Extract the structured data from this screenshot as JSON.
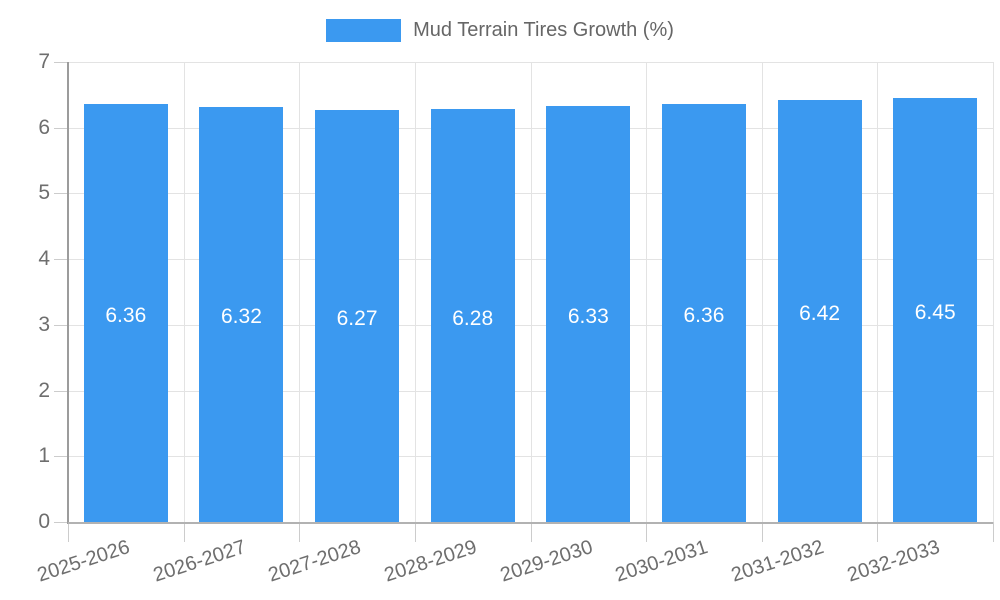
{
  "legend": {
    "label": "Mud Terrain Tires Growth (%)"
  },
  "chart_data": {
    "type": "bar",
    "title": "",
    "xlabel": "",
    "ylabel": "",
    "series_name": "Mud Terrain Tires Growth (%)",
    "categories": [
      "2025-2026",
      "2026-2027",
      "2027-2028",
      "2028-2029",
      "2029-2030",
      "2030-2031",
      "2031-2032",
      "2032-2033"
    ],
    "values": [
      6.36,
      6.32,
      6.27,
      6.28,
      6.33,
      6.36,
      6.42,
      6.45
    ],
    "value_labels": [
      "6.36",
      "6.32",
      "6.27",
      "6.28",
      "6.33",
      "6.36",
      "6.42",
      "6.45"
    ],
    "ylim": [
      0,
      7
    ],
    "y_ticks": [
      0,
      1,
      2,
      3,
      4,
      5,
      6,
      7
    ],
    "grid": true,
    "legend_position": "top",
    "x_label_rotation_deg": -18,
    "colors": {
      "bar": "#3b99f0",
      "bar_value_label": "#ffffff",
      "gridline": "#e3e3e3",
      "axis_line_y": "#9c9c9c",
      "axis_line_x": "#b2b2b2",
      "tick_mark": "#cccccc",
      "tick_label": "#6e6e6e",
      "legend_text": "#666666",
      "background": "#ffffff"
    }
  }
}
